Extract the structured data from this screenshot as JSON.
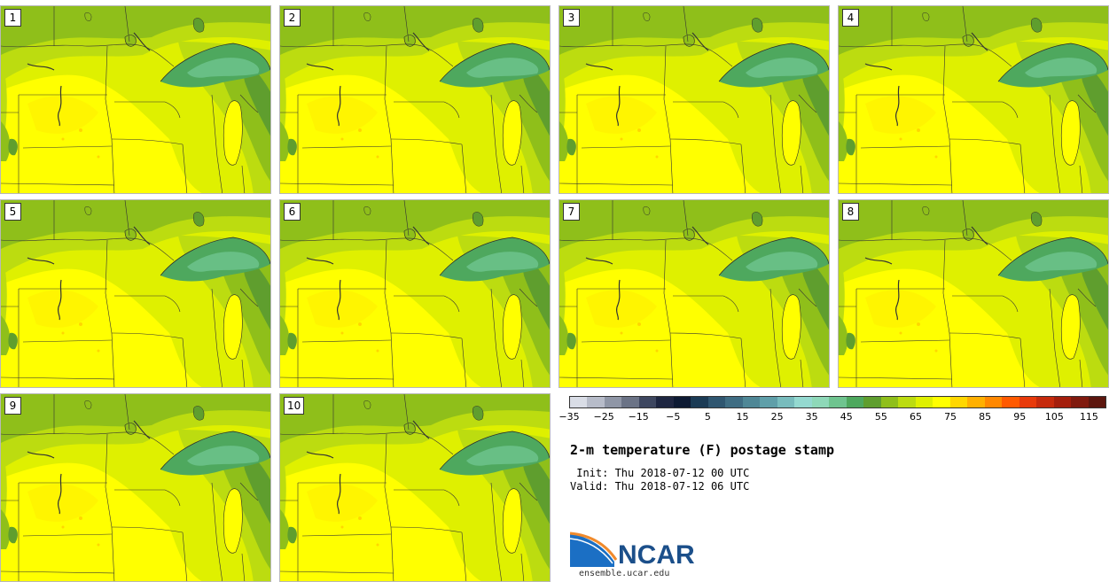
{
  "panels": [
    {
      "label": "1"
    },
    {
      "label": "2"
    },
    {
      "label": "3"
    },
    {
      "label": "4"
    },
    {
      "label": "5"
    },
    {
      "label": "6"
    },
    {
      "label": "7"
    },
    {
      "label": "8"
    },
    {
      "label": "9"
    },
    {
      "label": "10"
    }
  ],
  "colorbar": {
    "tick_labels": [
      "−35",
      "−25",
      "−15",
      "−5",
      "5",
      "15",
      "25",
      "35",
      "45",
      "55",
      "65",
      "75",
      "85",
      "95",
      "105",
      "115"
    ],
    "min": -35,
    "max": 120,
    "step": 5,
    "colors": [
      "#d9dde6",
      "#b7bcc9",
      "#8f96a6",
      "#6b7386",
      "#3e4760",
      "#1e2641",
      "#0d1a33",
      "#1b3b55",
      "#2f5670",
      "#3f6d83",
      "#4f8796",
      "#5f9fa9",
      "#78bcbd",
      "#94d9d0",
      "#8ed8b8",
      "#6fc48f",
      "#4ea85e",
      "#5f9e2e",
      "#8fbf1a",
      "#bcdc10",
      "#dff000",
      "#ffff00",
      "#ffd700",
      "#ffb000",
      "#ff8800",
      "#ff5a00",
      "#e83a0a",
      "#c62a0c",
      "#a41e0c",
      "#801a0e",
      "#5c160e"
    ]
  },
  "title": "2-m temperature (F) postage stamp",
  "init_line": " Init: Thu 2018-07-12 00 UTC",
  "valid_line": "Valid: Thu 2018-07-12 06 UTC",
  "logo": {
    "text": "NCAR",
    "colors": {
      "blue": "#1b4f8a",
      "orange": "#f08a2c"
    }
  },
  "website": "ensemble.ucar.edu"
}
